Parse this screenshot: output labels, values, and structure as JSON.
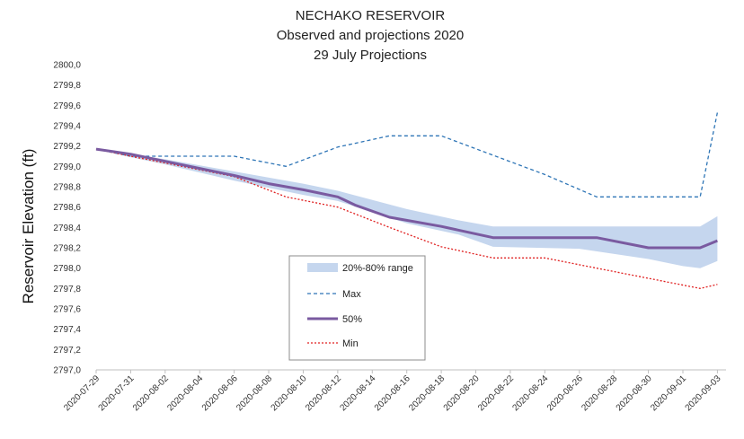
{
  "chart_data": {
    "type": "line",
    "title_lines": [
      "NECHAKO RESERVOIR",
      "Observed and projections 2020",
      "29 July Projections"
    ],
    "xlabel": "",
    "ylabel": "Reservoir Elevation (ft)",
    "ylim": [
      2797.0,
      2800.0
    ],
    "y_ticks": [
      "2800,0",
      "2799,8",
      "2799,6",
      "2799,4",
      "2799,2",
      "2799,0",
      "2798,8",
      "2798,6",
      "2798,4",
      "2798,2",
      "2798,0",
      "2797,8",
      "2797,6",
      "2797,4",
      "2797,2",
      "2797,0"
    ],
    "x_range": [
      "2020-07-29",
      "2020-09-03.5"
    ],
    "x_ticks": [
      "2020-07-29",
      "2020-07-31",
      "2020-08-02",
      "2020-08-04",
      "2020-08-06",
      "2020-08-08",
      "2020-08-10",
      "2020-08-12",
      "2020-08-14",
      "2020-08-16",
      "2020-08-18",
      "2020-08-20",
      "2020-08-22",
      "2020-08-24",
      "2020-08-26",
      "2020-08-28",
      "2020-08-30",
      "2020-09-01",
      "2020-09-03"
    ],
    "grid": false,
    "legend_position": "bottom-center",
    "band": {
      "name": "20%-80% range",
      "color": "#c5d6ee",
      "x": [
        "2020-07-29",
        "2020-07-31",
        "2020-08-02",
        "2020-08-06",
        "2020-08-10",
        "2020-08-12",
        "2020-08-16",
        "2020-08-19",
        "2020-08-21",
        "2020-08-26",
        "2020-08-30",
        "2020-09-01",
        "2020-09-02",
        "2020-09-03"
      ],
      "upper": [
        2799.17,
        2799.12,
        2799.07,
        2798.95,
        2798.83,
        2798.76,
        2798.58,
        2798.47,
        2798.41,
        2798.41,
        2798.41,
        2798.41,
        2798.41,
        2798.51
      ],
      "lower": [
        2799.17,
        2799.09,
        2799.02,
        2798.86,
        2798.72,
        2798.66,
        2798.44,
        2798.33,
        2798.21,
        2798.19,
        2798.09,
        2798.02,
        2798.0,
        2798.07
      ]
    },
    "series": [
      {
        "name": "Max",
        "color": "#2e75b6",
        "style": "dashed",
        "x": [
          "2020-07-29",
          "2020-07-31",
          "2020-08-06",
          "2020-08-09",
          "2020-08-12",
          "2020-08-15",
          "2020-08-18",
          "2020-08-21",
          "2020-08-24",
          "2020-08-27",
          "2020-09-02",
          "2020-09-03"
        ],
        "values": [
          2799.17,
          2799.1,
          2799.1,
          2799.0,
          2799.19,
          2799.3,
          2799.3,
          2799.11,
          2798.92,
          2798.7,
          2798.7,
          2799.53
        ]
      },
      {
        "name": "50%",
        "color": "#7a5aa0",
        "style": "solid",
        "x": [
          "2020-07-29",
          "2020-07-31",
          "2020-08-02",
          "2020-08-04",
          "2020-08-06",
          "2020-08-08",
          "2020-08-10",
          "2020-08-12",
          "2020-08-13",
          "2020-08-15",
          "2020-08-18",
          "2020-08-21",
          "2020-08-24",
          "2020-08-27",
          "2020-08-30",
          "2020-09-02",
          "2020-09-03"
        ],
        "values": [
          2799.17,
          2799.12,
          2799.05,
          2798.98,
          2798.91,
          2798.83,
          2798.77,
          2798.7,
          2798.62,
          2798.5,
          2798.41,
          2798.3,
          2798.3,
          2798.3,
          2798.2,
          2798.2,
          2798.27
        ]
      },
      {
        "name": "Min",
        "color": "#e02020",
        "style": "dotted",
        "x": [
          "2020-07-29",
          "2020-07-31",
          "2020-08-06",
          "2020-08-09",
          "2020-08-12",
          "2020-08-15",
          "2020-08-18",
          "2020-08-21",
          "2020-08-24",
          "2020-08-27",
          "2020-08-30",
          "2020-09-02",
          "2020-09-03"
        ],
        "values": [
          2799.17,
          2799.1,
          2798.9,
          2798.7,
          2798.6,
          2798.4,
          2798.21,
          2798.1,
          2798.1,
          2798.0,
          2797.9,
          2797.8,
          2797.84
        ]
      }
    ]
  }
}
